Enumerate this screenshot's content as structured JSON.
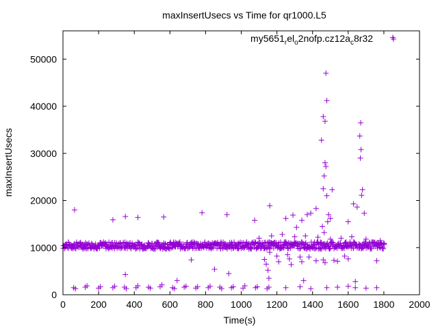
{
  "chart_data": {
    "type": "scatter",
    "title": "maxInsertUsecs vs Time for qr1000.L5",
    "xlabel": "Time(s)",
    "ylabel": "maxInsertUsecs",
    "xlim": [
      0,
      2000
    ],
    "ylim": [
      0,
      56000
    ],
    "xticks": [
      "0",
      "200",
      "400",
      "600",
      "800",
      "1000",
      "1200",
      "1400",
      "1600",
      "1800",
      "2000"
    ],
    "yticks": [
      "0",
      "10000",
      "20000",
      "30000",
      "40000",
      "50000"
    ],
    "grid": false,
    "legend_position": "top-right",
    "marker": "plus",
    "color": "#9400d3",
    "series": [
      {
        "legend_parts": [
          {
            "text": "my5651",
            "sub": false
          },
          {
            "text": "r",
            "sub": true
          },
          {
            "text": "el",
            "sub": false
          },
          {
            "text": "o",
            "sub": true
          },
          {
            "text": "2nofp.cz12a",
            "sub": false
          },
          {
            "text": "c",
            "sub": true
          },
          {
            "text": "8r32",
            "sub": false
          }
        ],
        "band": {
          "x": [
            0,
            1800
          ],
          "y_range": [
            9700,
            11200
          ],
          "step": 5
        },
        "low_clusters": [
          {
            "x": 60,
            "y": 1500
          },
          {
            "x": 70,
            "y": 1300
          },
          {
            "x": 125,
            "y": 1600
          },
          {
            "x": 135,
            "y": 1900
          },
          {
            "x": 200,
            "y": 1400
          },
          {
            "x": 210,
            "y": 1700
          },
          {
            "x": 280,
            "y": 1500
          },
          {
            "x": 290,
            "y": 1800
          },
          {
            "x": 345,
            "y": 1600
          },
          {
            "x": 355,
            "y": 1300
          },
          {
            "x": 410,
            "y": 1500
          },
          {
            "x": 420,
            "y": 1900
          },
          {
            "x": 480,
            "y": 1600
          },
          {
            "x": 490,
            "y": 1400
          },
          {
            "x": 545,
            "y": 1700
          },
          {
            "x": 555,
            "y": 2100
          },
          {
            "x": 615,
            "y": 1500
          },
          {
            "x": 625,
            "y": 1300
          },
          {
            "x": 680,
            "y": 1600
          },
          {
            "x": 690,
            "y": 1800
          },
          {
            "x": 745,
            "y": 1400
          },
          {
            "x": 755,
            "y": 1700
          },
          {
            "x": 815,
            "y": 1500
          },
          {
            "x": 825,
            "y": 1800
          },
          {
            "x": 880,
            "y": 1600
          },
          {
            "x": 890,
            "y": 1300
          },
          {
            "x": 945,
            "y": 1500
          },
          {
            "x": 955,
            "y": 1700
          },
          {
            "x": 1010,
            "y": 1400
          },
          {
            "x": 1020,
            "y": 1900
          },
          {
            "x": 1080,
            "y": 1500
          },
          {
            "x": 1090,
            "y": 1700
          },
          {
            "x": 1145,
            "y": 1300
          },
          {
            "x": 1155,
            "y": 1600
          },
          {
            "x": 1250,
            "y": 1500
          },
          {
            "x": 1330,
            "y": 1700
          },
          {
            "x": 1390,
            "y": 1300
          },
          {
            "x": 1480,
            "y": 1500
          },
          {
            "x": 1540,
            "y": 1600
          },
          {
            "x": 1600,
            "y": 1800
          },
          {
            "x": 1640,
            "y": 1500
          },
          {
            "x": 1700,
            "y": 1400
          },
          {
            "x": 1760,
            "y": 1500
          }
        ],
        "outliers": [
          {
            "x": 65,
            "y": 18000
          },
          {
            "x": 280,
            "y": 15900
          },
          {
            "x": 350,
            "y": 16600
          },
          {
            "x": 420,
            "y": 16400
          },
          {
            "x": 565,
            "y": 16500
          },
          {
            "x": 780,
            "y": 17400
          },
          {
            "x": 920,
            "y": 17000
          },
          {
            "x": 1075,
            "y": 15800
          },
          {
            "x": 1160,
            "y": 18900
          },
          {
            "x": 1250,
            "y": 16200
          },
          {
            "x": 1290,
            "y": 16900
          },
          {
            "x": 1310,
            "y": 14300
          },
          {
            "x": 1340,
            "y": 15800
          },
          {
            "x": 1370,
            "y": 17000
          },
          {
            "x": 1390,
            "y": 17300
          },
          {
            "x": 1420,
            "y": 18300
          },
          {
            "x": 1450,
            "y": 32800
          },
          {
            "x": 1460,
            "y": 37800
          },
          {
            "x": 1470,
            "y": 36800
          },
          {
            "x": 1475,
            "y": 47000
          },
          {
            "x": 1480,
            "y": 41200
          },
          {
            "x": 1470,
            "y": 28000
          },
          {
            "x": 1465,
            "y": 25200
          },
          {
            "x": 1475,
            "y": 27200
          },
          {
            "x": 1460,
            "y": 22500
          },
          {
            "x": 1480,
            "y": 21000
          },
          {
            "x": 1490,
            "y": 17000
          },
          {
            "x": 1500,
            "y": 16200
          },
          {
            "x": 1510,
            "y": 22300
          },
          {
            "x": 1455,
            "y": 14500
          },
          {
            "x": 1465,
            "y": 13200
          },
          {
            "x": 1485,
            "y": 15500
          },
          {
            "x": 1600,
            "y": 15500
          },
          {
            "x": 1630,
            "y": 19300
          },
          {
            "x": 1650,
            "y": 18600
          },
          {
            "x": 1670,
            "y": 36500
          },
          {
            "x": 1665,
            "y": 33700
          },
          {
            "x": 1672,
            "y": 30800
          },
          {
            "x": 1668,
            "y": 29000
          },
          {
            "x": 1680,
            "y": 22300
          },
          {
            "x": 1675,
            "y": 21100
          },
          {
            "x": 1690,
            "y": 17300
          },
          {
            "x": 1850,
            "y": 54600
          },
          {
            "x": 720,
            "y": 7400
          },
          {
            "x": 850,
            "y": 5400
          },
          {
            "x": 930,
            "y": 4500
          },
          {
            "x": 350,
            "y": 4300
          },
          {
            "x": 640,
            "y": 3000
          },
          {
            "x": 1100,
            "y": 12000
          },
          {
            "x": 1130,
            "y": 7500
          },
          {
            "x": 1140,
            "y": 6500
          },
          {
            "x": 1150,
            "y": 5200
          },
          {
            "x": 1155,
            "y": 3500
          },
          {
            "x": 1160,
            "y": 9000
          },
          {
            "x": 1170,
            "y": 12500
          },
          {
            "x": 1200,
            "y": 8200
          },
          {
            "x": 1210,
            "y": 7000
          },
          {
            "x": 1230,
            "y": 12800
          },
          {
            "x": 1260,
            "y": 8500
          },
          {
            "x": 1270,
            "y": 7600
          },
          {
            "x": 1280,
            "y": 6400
          },
          {
            "x": 1300,
            "y": 12300
          },
          {
            "x": 1330,
            "y": 8000
          },
          {
            "x": 1340,
            "y": 7000
          },
          {
            "x": 1350,
            "y": 3000
          },
          {
            "x": 1360,
            "y": 12500
          },
          {
            "x": 1380,
            "y": 8000
          },
          {
            "x": 1420,
            "y": 7200
          },
          {
            "x": 1430,
            "y": 12200
          },
          {
            "x": 1460,
            "y": 7400
          },
          {
            "x": 1470,
            "y": 6800
          },
          {
            "x": 1500,
            "y": 11800
          },
          {
            "x": 1520,
            "y": 7300
          },
          {
            "x": 1540,
            "y": 7100
          },
          {
            "x": 1560,
            "y": 12000
          },
          {
            "x": 1580,
            "y": 8200
          },
          {
            "x": 1600,
            "y": 7600
          },
          {
            "x": 1620,
            "y": 12300
          },
          {
            "x": 1640,
            "y": 2800
          },
          {
            "x": 1700,
            "y": 11800
          },
          {
            "x": 1760,
            "y": 7200
          },
          {
            "x": 1780,
            "y": 11500
          }
        ]
      }
    ]
  }
}
